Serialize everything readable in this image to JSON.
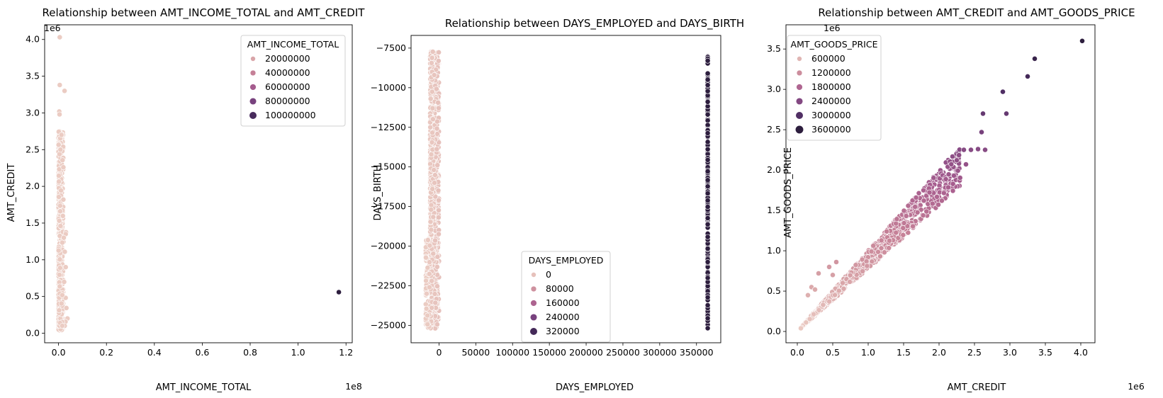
{
  "figure": {
    "background": "#ffffff"
  },
  "palette": {
    "light": "#ebccc3",
    "dark": "#2d1e3e",
    "stops": [
      "#ebccc3",
      "#d9a6a9",
      "#c68197",
      "#a85e8f",
      "#7c4480",
      "#4d2d62",
      "#2d1e3e"
    ]
  },
  "chart_data": [
    {
      "type": "scatter",
      "title": "Relationship between AMT_INCOME_TOTAL and AMT_CREDIT",
      "xlabel": "AMT_INCOME_TOTAL",
      "ylabel": "AMT_CREDIT",
      "x_offset_text": "1e8",
      "y_offset_text": "1e6",
      "xlim": [
        -0.058,
        1.226
      ],
      "ylim": [
        -0.13,
        4.2
      ],
      "xticks": [
        {
          "value": 0.0,
          "label": "0.0"
        },
        {
          "value": 0.2,
          "label": "0.2"
        },
        {
          "value": 0.4,
          "label": "0.4"
        },
        {
          "value": 0.6,
          "label": "0.6"
        },
        {
          "value": 0.8,
          "label": "0.8"
        },
        {
          "value": 1.0,
          "label": "1.0"
        },
        {
          "value": 1.2,
          "label": "1.2"
        }
      ],
      "yticks": [
        {
          "value": 0.0,
          "label": "0.0"
        },
        {
          "value": 0.5,
          "label": "0.5"
        },
        {
          "value": 1.0,
          "label": "1.0"
        },
        {
          "value": 1.5,
          "label": "1.5"
        },
        {
          "value": 2.0,
          "label": "2.0"
        },
        {
          "value": 2.5,
          "label": "2.5"
        },
        {
          "value": 3.0,
          "label": "3.0"
        },
        {
          "value": 3.5,
          "label": "3.5"
        },
        {
          "value": 4.0,
          "label": "4.0"
        }
      ],
      "hue_range": [
        0,
        1.17
      ],
      "legend": {
        "title": "AMT_INCOME_TOTAL",
        "location": "upper right",
        "entries": [
          {
            "label": "20000000",
            "level": 0.17
          },
          {
            "label": "40000000",
            "level": 0.34
          },
          {
            "label": "60000000",
            "level": 0.51
          },
          {
            "label": "80000000",
            "level": 0.68
          },
          {
            "label": "100000000",
            "level": 0.86
          }
        ]
      },
      "clusters": [
        {
          "x": [
            0.0,
            0.02
          ],
          "y": [
            0.04,
            2.75
          ],
          "n": 520,
          "seed": 11
        },
        {
          "x": [
            0.0,
            0.04
          ],
          "y": [
            0.1,
            1.4
          ],
          "n": 40,
          "seed": 12
        }
      ],
      "points": [
        {
          "x": 0.005,
          "y": 4.03
        },
        {
          "x": 0.005,
          "y": 3.38
        },
        {
          "x": 0.025,
          "y": 3.3
        },
        {
          "x": 0.003,
          "y": 3.02
        },
        {
          "x": 0.004,
          "y": 2.98
        },
        {
          "x": 0.012,
          "y": 2.7
        },
        {
          "x": 0.008,
          "y": 2.5
        },
        {
          "x": 0.02,
          "y": 2.26
        },
        {
          "x": 0.03,
          "y": 1.35
        },
        {
          "x": 0.03,
          "y": 0.9
        },
        {
          "x": 0.02,
          "y": 1.82
        },
        {
          "x": 0.022,
          "y": 1.3
        },
        {
          "x": 1.17,
          "y": 0.56,
          "hue": 1.17
        }
      ]
    },
    {
      "type": "scatter",
      "title": "Relationship between DAYS_EMPLOYED and DAYS_BIRTH",
      "xlabel": "DAYS_EMPLOYED",
      "ylabel": "DAYS_BIRTH",
      "xlim": [
        -38000,
        383000
      ],
      "ylim": [
        -26100,
        -6700
      ],
      "xticks": [
        {
          "value": 0,
          "label": "0"
        },
        {
          "value": 50000,
          "label": "50000"
        },
        {
          "value": 100000,
          "label": "100000"
        },
        {
          "value": 150000,
          "label": "150000"
        },
        {
          "value": 200000,
          "label": "200000"
        },
        {
          "value": 250000,
          "label": "250000"
        },
        {
          "value": 300000,
          "label": "300000"
        },
        {
          "value": 350000,
          "label": "350000"
        }
      ],
      "yticks": [
        {
          "value": -7500,
          "label": "−7500"
        },
        {
          "value": -10000,
          "label": "−10000"
        },
        {
          "value": -12500,
          "label": "−12500"
        },
        {
          "value": -15000,
          "label": "−15000"
        },
        {
          "value": -17500,
          "label": "−17500"
        },
        {
          "value": -20000,
          "label": "−20000"
        },
        {
          "value": -22500,
          "label": "−22500"
        },
        {
          "value": -25000,
          "label": "−25000"
        }
      ],
      "hue_range": [
        -17912,
        365243
      ],
      "legend": {
        "title": "DAYS_EMPLOYED",
        "location": "lower center",
        "entries": [
          {
            "label": "0",
            "level": 0.05
          },
          {
            "label": "80000",
            "level": 0.26
          },
          {
            "label": "160000",
            "level": 0.47
          },
          {
            "label": "240000",
            "level": 0.68
          },
          {
            "label": "320000",
            "level": 0.88
          }
        ]
      },
      "clusters": [
        {
          "x": [
            -12000,
            0
          ],
          "y": [
            -25200,
            -7700
          ],
          "n": 900,
          "seed": 21
        },
        {
          "x": [
            -18000,
            -2000
          ],
          "y": [
            -25200,
            -19500
          ],
          "n": 150,
          "seed": 22
        },
        {
          "x": [
            365243,
            365243
          ],
          "y": [
            -25200,
            -8000
          ],
          "n": 220,
          "seed": 23,
          "hue": 365243
        }
      ],
      "points": []
    },
    {
      "type": "scatter",
      "title": "Relationship between AMT_CREDIT and AMT_GOODS_PRICE",
      "xlabel": "AMT_CREDIT",
      "ylabel": "AMT_GOODS_PRICE",
      "x_offset_text": "1e6",
      "y_offset_text": "1e6",
      "xlim": [
        -0.16,
        4.2
      ],
      "ylim": [
        -0.14,
        3.8
      ],
      "xticks": [
        {
          "value": 0.0,
          "label": "0.0"
        },
        {
          "value": 0.5,
          "label": "0.5"
        },
        {
          "value": 1.0,
          "label": "1.0"
        },
        {
          "value": 1.5,
          "label": "1.5"
        },
        {
          "value": 2.0,
          "label": "2.0"
        },
        {
          "value": 2.5,
          "label": "2.5"
        },
        {
          "value": 3.0,
          "label": "3.0"
        },
        {
          "value": 3.5,
          "label": "3.5"
        },
        {
          "value": 4.0,
          "label": "4.0"
        }
      ],
      "yticks": [
        {
          "value": 0.0,
          "label": "0.0"
        },
        {
          "value": 0.5,
          "label": "0.5"
        },
        {
          "value": 1.0,
          "label": "1.0"
        },
        {
          "value": 1.5,
          "label": "1.5"
        },
        {
          "value": 2.0,
          "label": "2.0"
        },
        {
          "value": 2.5,
          "label": "2.5"
        },
        {
          "value": 3.0,
          "label": "3.0"
        },
        {
          "value": 3.5,
          "label": "3.5"
        }
      ],
      "hue_range": [
        0,
        3.6
      ],
      "legend": {
        "title": "AMT_GOODS_PRICE",
        "location": "upper left",
        "entries": [
          {
            "label": "600000",
            "level": 0.1
          },
          {
            "label": "1200000",
            "level": 0.28
          },
          {
            "label": "1800000",
            "level": 0.46
          },
          {
            "label": "2400000",
            "level": 0.64
          },
          {
            "label": "3000000",
            "level": 0.82
          },
          {
            "label": "3600000",
            "level": 1.0
          }
        ]
      },
      "bands": [
        {
          "x": [
            0.05,
            2.3
          ],
          "ratio": [
            0.78,
            1.0
          ],
          "n": 1100,
          "seed": 31
        }
      ],
      "points": [
        {
          "x": 0.15,
          "y": 0.45
        },
        {
          "x": 0.2,
          "y": 0.55
        },
        {
          "x": 0.25,
          "y": 0.52
        },
        {
          "x": 0.3,
          "y": 0.72
        },
        {
          "x": 0.45,
          "y": 0.8
        },
        {
          "x": 0.55,
          "y": 0.86
        },
        {
          "x": 0.5,
          "y": 0.7
        },
        {
          "x": 2.35,
          "y": 2.25
        },
        {
          "x": 2.45,
          "y": 2.25
        },
        {
          "x": 2.55,
          "y": 2.26
        },
        {
          "x": 2.65,
          "y": 2.25
        },
        {
          "x": 2.38,
          "y": 2.07
        },
        {
          "x": 2.6,
          "y": 2.47
        },
        {
          "x": 2.62,
          "y": 2.7
        },
        {
          "x": 2.9,
          "y": 2.97
        },
        {
          "x": 2.95,
          "y": 2.7
        },
        {
          "x": 3.25,
          "y": 3.16
        },
        {
          "x": 3.35,
          "y": 3.38
        },
        {
          "x": 4.02,
          "y": 3.6
        }
      ]
    }
  ]
}
